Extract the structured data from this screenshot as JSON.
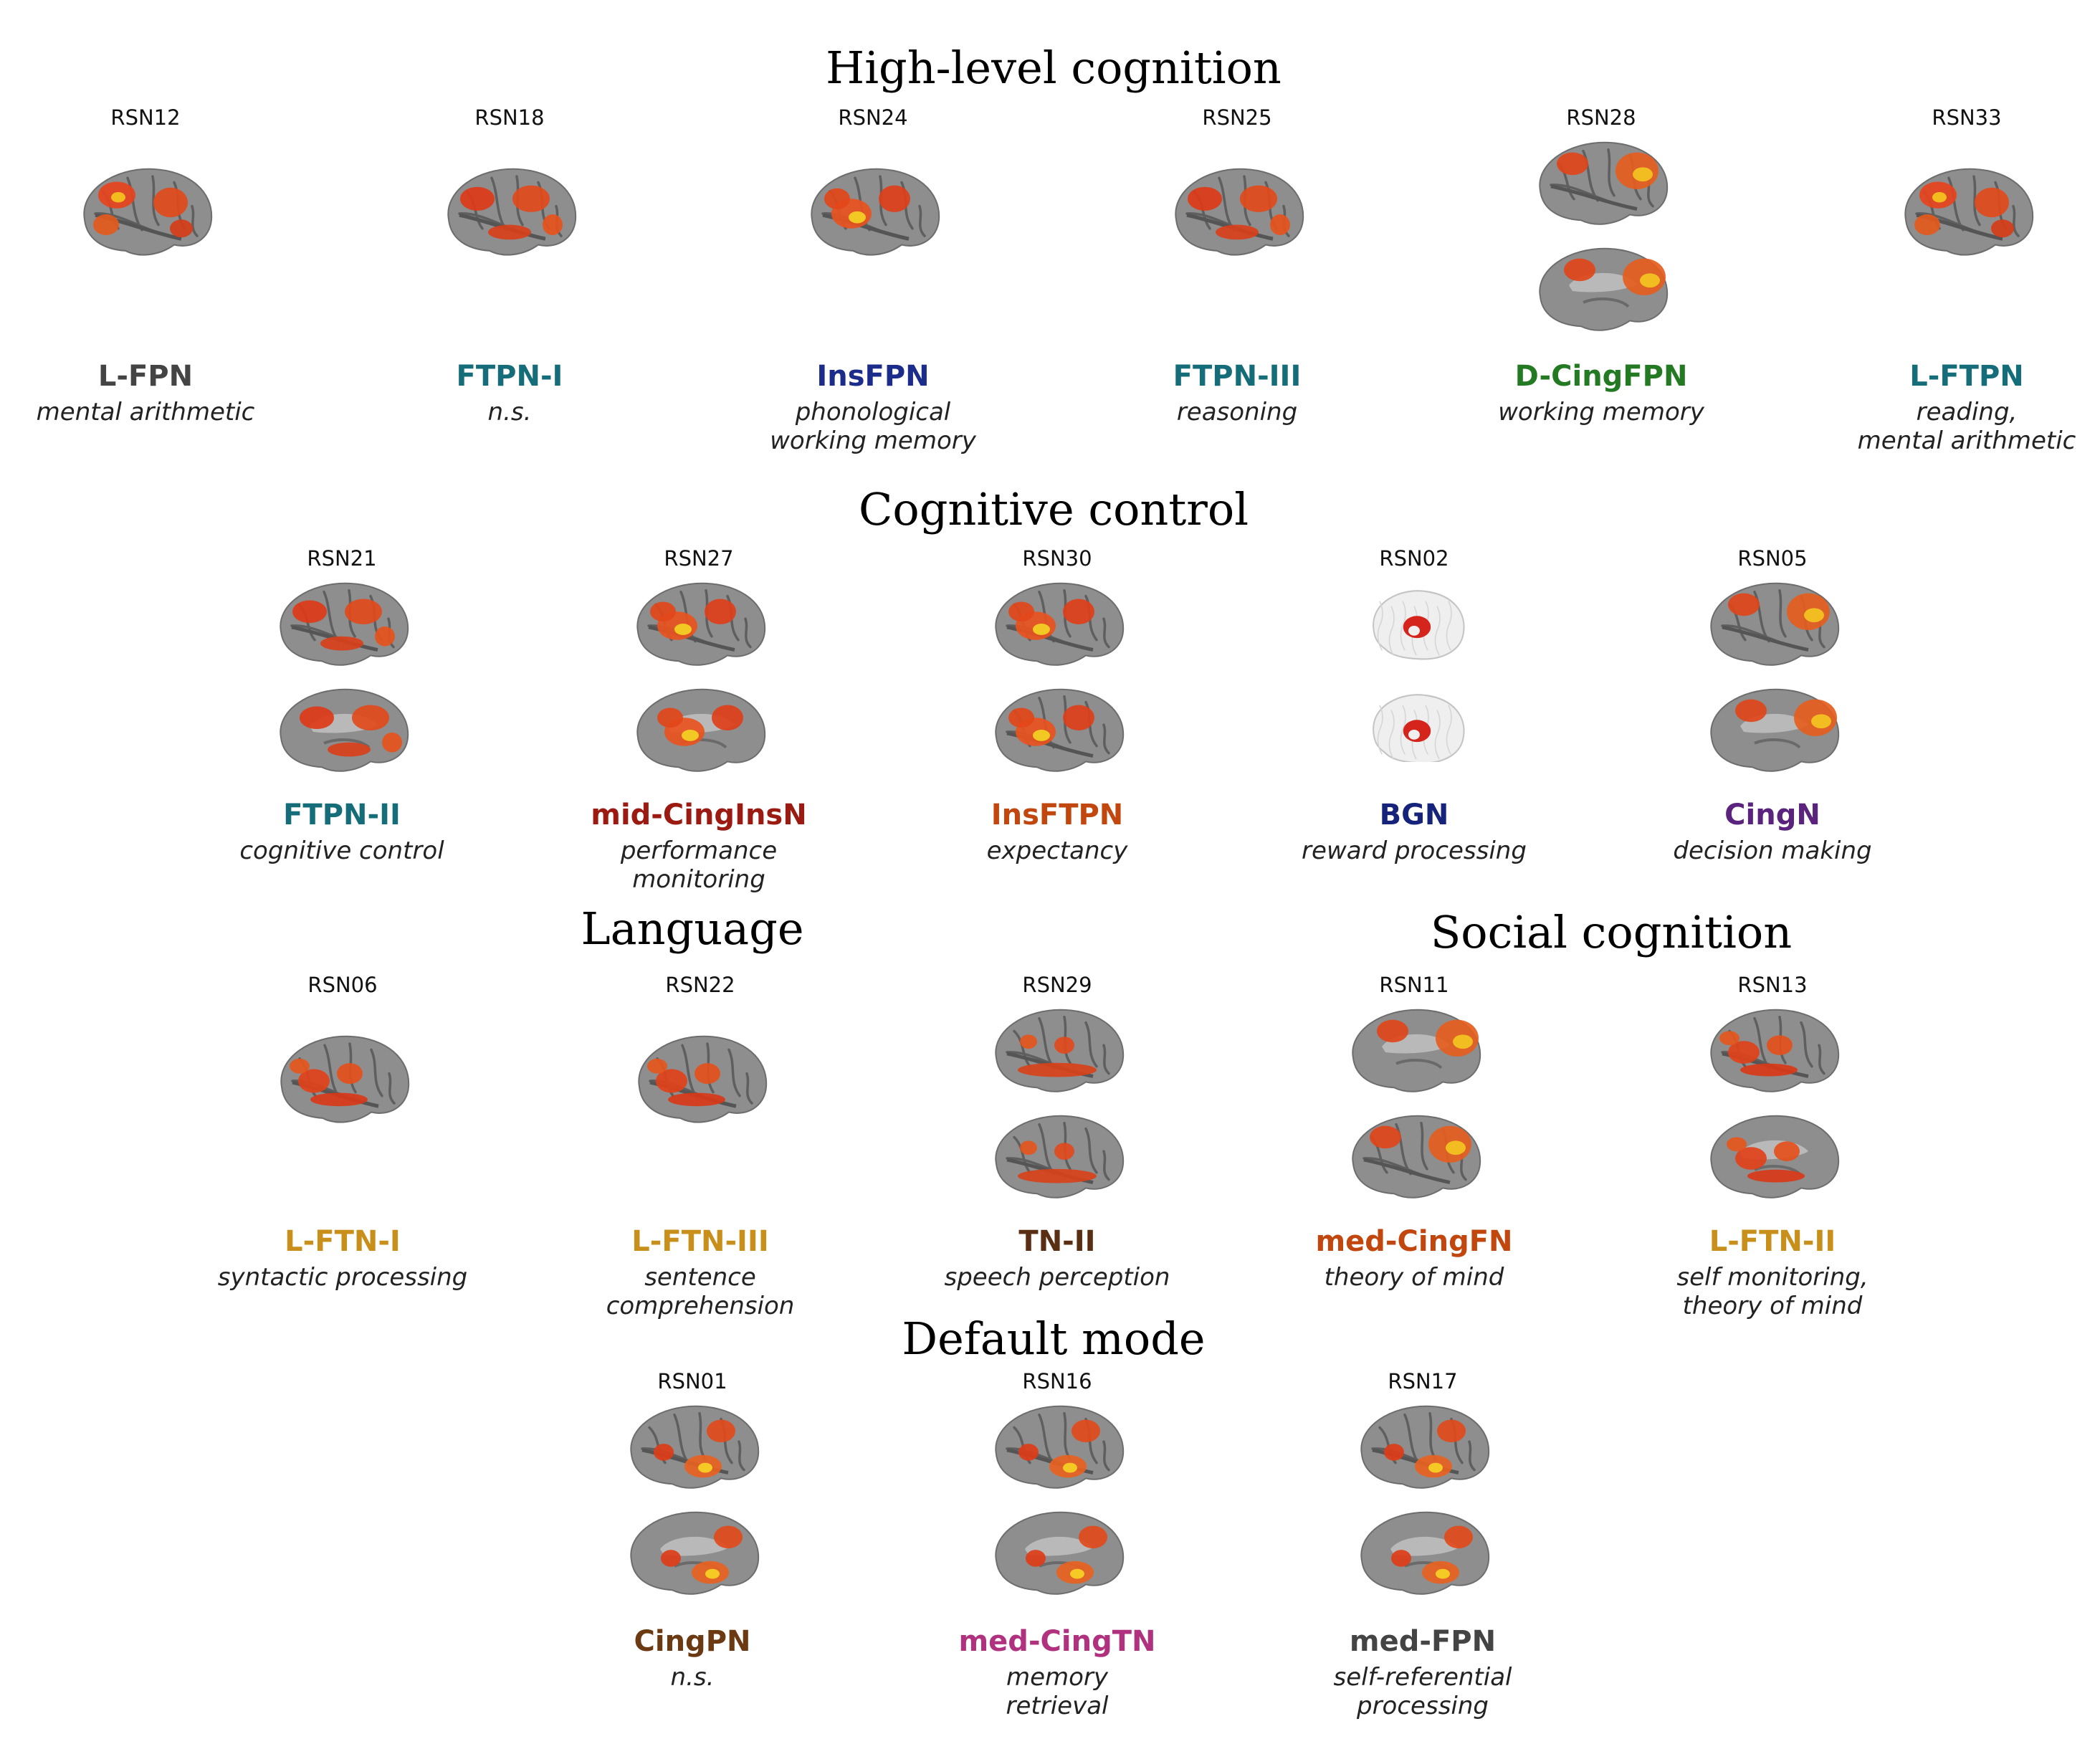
{
  "sections": {
    "high_level": "High-level cognition",
    "cognitive_control": "Cognitive control",
    "language": "Language",
    "social": "Social cognition",
    "default_mode": "Default mode"
  },
  "networks": [
    {
      "id": "RSN12",
      "name": "L-FPN",
      "function": [
        "mental arithmetic"
      ],
      "color": "#444444",
      "views": "lateral",
      "pattern": "fpn"
    },
    {
      "id": "RSN18",
      "name": "FTPN-I",
      "function": [
        "n.s."
      ],
      "color": "#156d7a",
      "views": "lateral",
      "pattern": "ftpn"
    },
    {
      "id": "RSN24",
      "name": "InsFPN",
      "function": [
        "phonological",
        "working memory"
      ],
      "color": "#1b2c8a",
      "views": "lateral",
      "pattern": "ins"
    },
    {
      "id": "RSN25",
      "name": "FTPN-III",
      "function": [
        "reasoning"
      ],
      "color": "#156d7a",
      "views": "lateral",
      "pattern": "ftpn"
    },
    {
      "id": "RSN28",
      "name": "D-CingFPN",
      "function": [
        "working memory"
      ],
      "color": "#237a22",
      "views": "lateral+medial",
      "pattern": "cing"
    },
    {
      "id": "RSN33",
      "name": "L-FTPN",
      "function": [
        "reading,",
        "mental arithmetic"
      ],
      "color": "#156d7a",
      "views": "lateral",
      "pattern": "fpn"
    },
    {
      "id": "RSN21",
      "name": "FTPN-II",
      "function": [
        "cognitive control"
      ],
      "color": "#156d7a",
      "views": "lateral+medial",
      "pattern": "ftpn"
    },
    {
      "id": "RSN27",
      "name": "mid-CingInsN",
      "function": [
        "performance",
        "monitoring"
      ],
      "color": "#9b1a12",
      "views": "lateral+medial",
      "pattern": "ins"
    },
    {
      "id": "RSN30",
      "name": "InsFTPN",
      "function": [
        "expectancy"
      ],
      "color": "#c2470f",
      "views": "lateral+lateral",
      "pattern": "ins"
    },
    {
      "id": "RSN02",
      "name": "BGN",
      "function": [
        "reward processing"
      ],
      "color": "#15237a",
      "views": "glass",
      "pattern": "bg"
    },
    {
      "id": "RSN05",
      "name": "CingN",
      "function": [
        "decision making"
      ],
      "color": "#5a237d",
      "views": "lateral+medial",
      "pattern": "cing"
    },
    {
      "id": "RSN06",
      "name": "L-FTN-I",
      "function": [
        "syntactic processing"
      ],
      "color": "#c8901a",
      "views": "lateral",
      "pattern": "lang"
    },
    {
      "id": "RSN22",
      "name": "L-FTN-III",
      "function": [
        "sentence",
        "comprehension"
      ],
      "color": "#c8901a",
      "views": "lateral",
      "pattern": "lang"
    },
    {
      "id": "RSN29",
      "name": "TN-II",
      "function": [
        "speech perception"
      ],
      "color": "#5a2e12",
      "views": "lateral+lateral",
      "pattern": "temporal"
    },
    {
      "id": "RSN11",
      "name": "med-CingFN",
      "function": [
        "theory of mind"
      ],
      "color": "#c2470f",
      "views": "medial+lateral",
      "pattern": "cing"
    },
    {
      "id": "RSN13",
      "name": "L-FTN-II",
      "function": [
        "self monitoring,",
        "theory of mind"
      ],
      "color": "#c8901a",
      "views": "lateral+medial",
      "pattern": "lang"
    },
    {
      "id": "RSN01",
      "name": "CingPN",
      "function": [
        "n.s."
      ],
      "color": "#6b3a12",
      "views": "lateral+medial",
      "pattern": "dmn"
    },
    {
      "id": "RSN16",
      "name": "med-CingTN",
      "function": [
        "memory",
        "retrieval"
      ],
      "color": "#b0327f",
      "views": "lateral+medial",
      "pattern": "dmn"
    },
    {
      "id": "RSN17",
      "name": "med-FPN",
      "function": [
        "self-referential",
        "processing"
      ],
      "color": "#444444",
      "views": "lateral+medial",
      "pattern": "dmn"
    }
  ]
}
